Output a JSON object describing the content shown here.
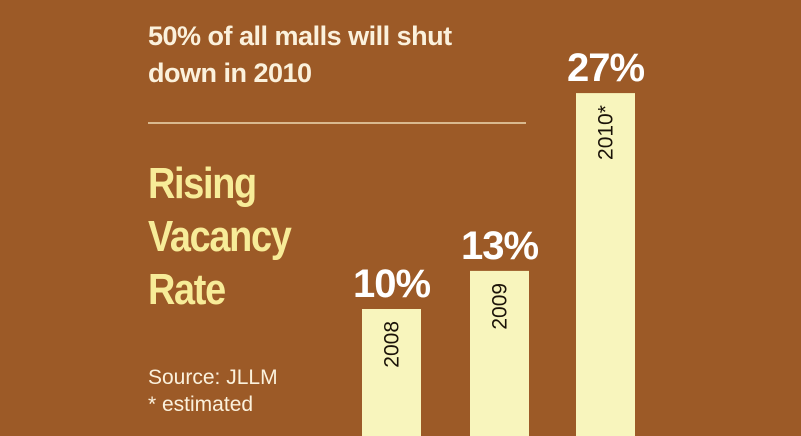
{
  "headline": "50% of all malls will shut down in 2010",
  "title_lines": [
    "Rising",
    "Vacancy",
    "Rate"
  ],
  "source": "Source: JLLM",
  "note": "* estimated",
  "colors": {
    "background": "#9c5a27",
    "bar": "#f8f5bd",
    "title": "#f7ec98",
    "text": "#fbf1dc",
    "divider": "#d9b98f"
  },
  "chart_data": {
    "type": "bar",
    "categories": [
      "2008",
      "2009",
      "2010*"
    ],
    "values": [
      10,
      13,
      27
    ],
    "value_labels": [
      "10%",
      "13%",
      "27%"
    ],
    "title": "Rising Vacancy Rate",
    "xlabel": "",
    "ylabel": "",
    "grid": false,
    "legend": "none"
  }
}
